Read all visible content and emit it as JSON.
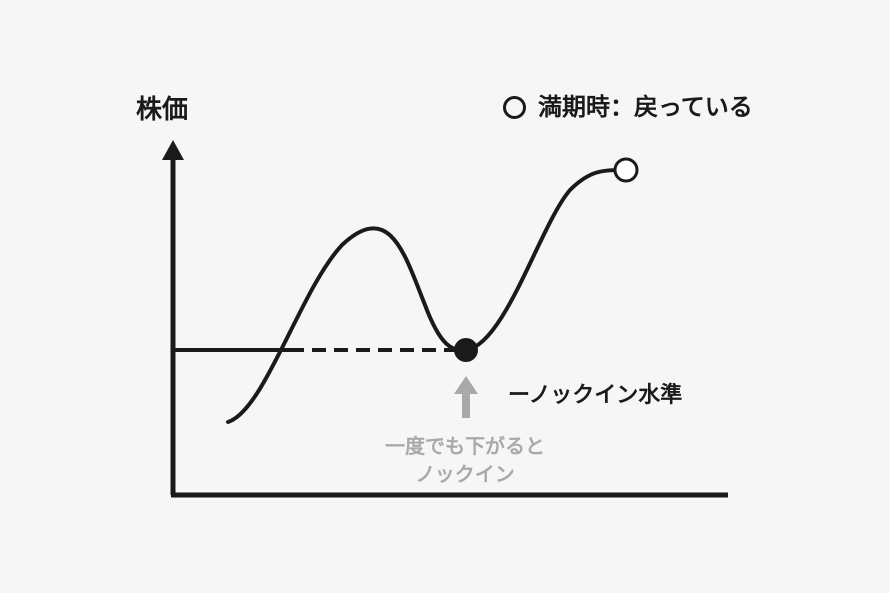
{
  "y_axis_label": "株価",
  "legend": {
    "label": "満期時：戻っている"
  },
  "knock_in_level_label": "ーノックイン水準",
  "knock_in_note": {
    "line1": "一度でも下がると",
    "line2": "ノックイン"
  },
  "colors": {
    "line": "#1a1a1a",
    "note": "#a9a9a9",
    "background": "#f6f6f6"
  }
}
